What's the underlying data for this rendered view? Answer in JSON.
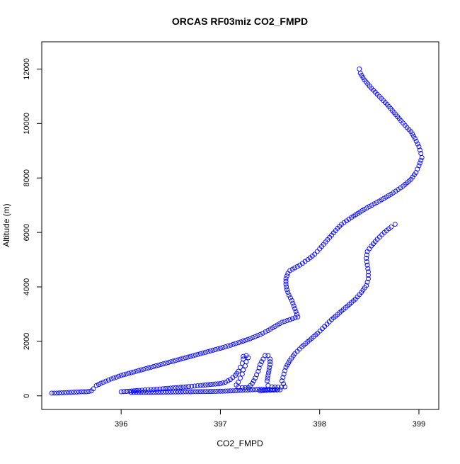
{
  "chart_data": {
    "type": "scatter",
    "title": "ORCAS RF03miz CO2_FMPD",
    "xlabel": "CO2_FMPD",
    "ylabel": "Altitude (m)",
    "xlim": [
      395.2,
      399.2
    ],
    "ylim": [
      -500,
      13000
    ],
    "xticks": [
      396,
      397,
      398,
      399
    ],
    "yticks": [
      0,
      2000,
      4000,
      6000,
      8000,
      10000,
      12000
    ],
    "grid": false,
    "legend": "none",
    "marker": "open-circle",
    "marker_color": "#0000ff",
    "segments": [
      {
        "points": [
          [
            398.4,
            12000
          ],
          [
            398.41,
            11850
          ],
          [
            398.45,
            11600
          ],
          [
            398.52,
            11300
          ],
          [
            398.6,
            11000
          ],
          [
            398.68,
            10700
          ],
          [
            398.75,
            10400
          ],
          [
            398.82,
            10100
          ],
          [
            398.88,
            9850
          ],
          [
            398.92,
            9700
          ],
          [
            398.96,
            9450
          ],
          [
            399.0,
            9150
          ],
          [
            399.02,
            8900
          ],
          [
            399.03,
            8750
          ],
          [
            399.0,
            8450
          ],
          [
            398.97,
            8200
          ],
          [
            398.92,
            7950
          ],
          [
            398.84,
            7700
          ],
          [
            398.74,
            7450
          ],
          [
            398.6,
            7150
          ],
          [
            398.45,
            6850
          ],
          [
            398.32,
            6550
          ],
          [
            398.22,
            6300
          ],
          [
            398.18,
            6150
          ],
          [
            398.12,
            5900
          ],
          [
            398.06,
            5650
          ],
          [
            398.0,
            5400
          ],
          [
            397.95,
            5200
          ],
          [
            397.88,
            5000
          ],
          [
            397.8,
            4800
          ],
          [
            397.7,
            4600
          ],
          [
            397.68,
            4500
          ],
          [
            397.66,
            4300
          ],
          [
            397.66,
            4100
          ],
          [
            397.67,
            3900
          ],
          [
            397.69,
            3700
          ],
          [
            397.72,
            3500
          ],
          [
            397.74,
            3300
          ],
          [
            397.76,
            3100
          ],
          [
            397.78,
            2900
          ],
          [
            397.7,
            2800
          ],
          [
            397.62,
            2700
          ],
          [
            397.55,
            2550
          ],
          [
            397.48,
            2400
          ],
          [
            397.4,
            2250
          ],
          [
            397.3,
            2100
          ],
          [
            397.18,
            1950
          ],
          [
            397.05,
            1800
          ],
          [
            396.9,
            1650
          ],
          [
            396.75,
            1500
          ],
          [
            396.6,
            1350
          ],
          [
            396.45,
            1200
          ],
          [
            396.3,
            1050
          ],
          [
            396.15,
            900
          ],
          [
            396.0,
            750
          ],
          [
            395.9,
            620
          ],
          [
            395.82,
            500
          ],
          [
            395.75,
            380
          ],
          [
            395.72,
            260
          ],
          [
            395.7,
            180
          ],
          [
            395.65,
            150
          ],
          [
            395.6,
            150
          ],
          [
            395.55,
            140
          ],
          [
            395.45,
            120
          ],
          [
            395.35,
            100
          ],
          [
            395.3,
            100
          ]
        ]
      },
      {
        "points": [
          [
            396.0,
            150
          ],
          [
            396.08,
            170
          ],
          [
            396.18,
            200
          ],
          [
            396.3,
            230
          ],
          [
            396.42,
            260
          ],
          [
            396.55,
            300
          ],
          [
            396.68,
            340
          ],
          [
            396.8,
            380
          ],
          [
            396.9,
            420
          ],
          [
            397.0,
            450
          ],
          [
            397.05,
            500
          ],
          [
            397.1,
            600
          ],
          [
            397.15,
            750
          ],
          [
            397.18,
            900
          ],
          [
            397.2,
            1050
          ],
          [
            397.22,
            1200
          ],
          [
            397.23,
            1350
          ],
          [
            397.23,
            1450
          ],
          [
            397.26,
            1480
          ],
          [
            397.28,
            1400
          ],
          [
            397.26,
            1250
          ],
          [
            397.25,
            1100
          ],
          [
            397.23,
            950
          ],
          [
            397.22,
            800
          ],
          [
            397.2,
            650
          ],
          [
            397.18,
            500
          ],
          [
            397.16,
            400
          ],
          [
            397.18,
            320
          ],
          [
            397.22,
            300
          ],
          [
            397.28,
            300
          ],
          [
            397.32,
            450
          ],
          [
            397.35,
            650
          ],
          [
            397.38,
            900
          ],
          [
            397.4,
            1150
          ],
          [
            397.43,
            1350
          ],
          [
            397.45,
            1480
          ],
          [
            397.48,
            1480
          ],
          [
            397.5,
            1350
          ],
          [
            397.5,
            1150
          ],
          [
            397.49,
            950
          ],
          [
            397.48,
            750
          ],
          [
            397.47,
            550
          ],
          [
            397.48,
            380
          ],
          [
            397.52,
            330
          ],
          [
            397.58,
            320
          ],
          [
            397.65,
            330
          ],
          [
            397.62,
            550
          ],
          [
            397.64,
            800
          ],
          [
            397.66,
            1050
          ],
          [
            397.7,
            1300
          ],
          [
            397.75,
            1550
          ],
          [
            397.82,
            1800
          ],
          [
            397.9,
            2050
          ],
          [
            397.98,
            2300
          ],
          [
            398.05,
            2550
          ],
          [
            398.12,
            2800
          ],
          [
            398.2,
            3050
          ],
          [
            398.28,
            3300
          ],
          [
            398.36,
            3550
          ],
          [
            398.42,
            3800
          ],
          [
            398.47,
            4050
          ],
          [
            398.49,
            4300
          ],
          [
            398.49,
            4550
          ],
          [
            398.48,
            4800
          ],
          [
            398.47,
            5050
          ],
          [
            398.48,
            5300
          ],
          [
            398.52,
            5500
          ],
          [
            398.58,
            5750
          ],
          [
            398.65,
            6000
          ],
          [
            398.72,
            6200
          ],
          [
            398.76,
            6300
          ]
        ]
      },
      {
        "points": [
          [
            396.1,
            130
          ],
          [
            396.3,
            130
          ],
          [
            396.5,
            140
          ],
          [
            396.7,
            150
          ],
          [
            396.9,
            160
          ],
          [
            397.0,
            170
          ],
          [
            397.1,
            180
          ],
          [
            397.2,
            200
          ],
          [
            397.3,
            220
          ],
          [
            397.4,
            240
          ],
          [
            397.5,
            230
          ],
          [
            397.6,
            220
          ],
          [
            397.48,
            200
          ],
          [
            397.4,
            180
          ]
        ]
      }
    ]
  }
}
